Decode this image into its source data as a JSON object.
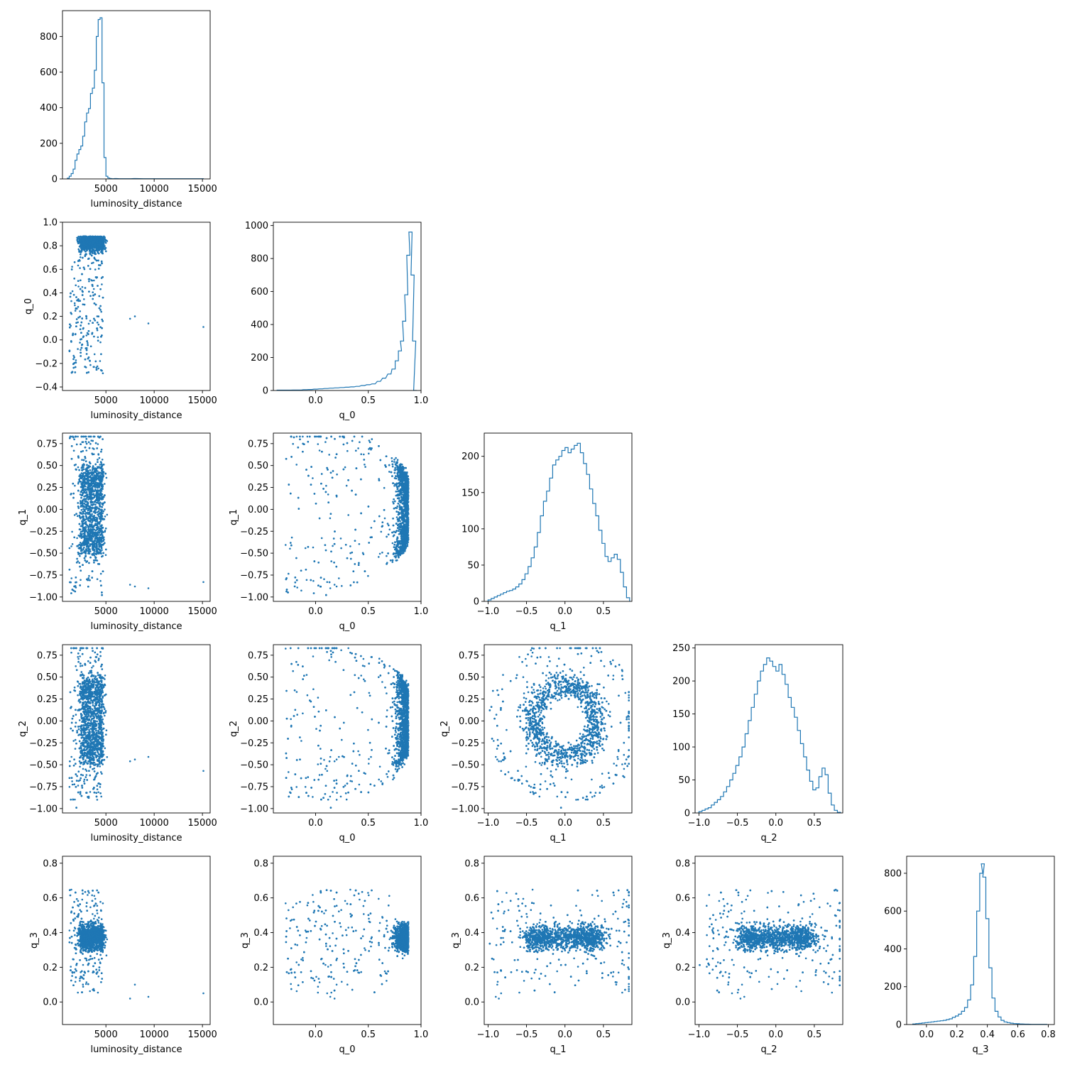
{
  "figure": {
    "type": "corner-plot",
    "color": "#1f77b4"
  },
  "chart_data": [
    {
      "type": "histogram",
      "row": 0,
      "col": 0,
      "xlabel": "luminosity_distance",
      "xlim": [
        500,
        15800
      ],
      "ylim": [
        0,
        945
      ],
      "xticks": [
        5000,
        10000,
        15000
      ],
      "yticks": [
        0,
        200,
        400,
        600,
        800
      ],
      "bins": [
        [
          1100,
          4
        ],
        [
          1300,
          15
        ],
        [
          1500,
          30
        ],
        [
          1700,
          55
        ],
        [
          1900,
          105
        ],
        [
          2100,
          140
        ],
        [
          2300,
          165
        ],
        [
          2500,
          185
        ],
        [
          2700,
          240
        ],
        [
          2900,
          320
        ],
        [
          3100,
          370
        ],
        [
          3300,
          395
        ],
        [
          3500,
          480
        ],
        [
          3700,
          510
        ],
        [
          3900,
          610
        ],
        [
          4100,
          800
        ],
        [
          4300,
          895
        ],
        [
          4500,
          905
        ],
        [
          4700,
          540
        ],
        [
          4900,
          120
        ],
        [
          5100,
          15
        ],
        [
          5300,
          5
        ],
        [
          5500,
          2
        ],
        [
          5700,
          1
        ],
        [
          6000,
          2
        ],
        [
          6500,
          1
        ],
        [
          7500,
          1
        ],
        [
          8000,
          2
        ],
        [
          9000,
          1
        ],
        [
          9500,
          1
        ],
        [
          15000,
          1
        ]
      ],
      "bin_width": 200
    },
    {
      "type": "scatter",
      "row": 1,
      "col": 0,
      "xlabel": "luminosity_distance",
      "ylabel": "q_0",
      "xlim": [
        500,
        15800
      ],
      "ylim": [
        -0.43,
        1.0
      ],
      "xticks": [
        5000,
        10000,
        15000
      ],
      "yticks": [
        -0.4,
        -0.2,
        0.0,
        0.2,
        0.4,
        0.6,
        0.8,
        1.0
      ]
    },
    {
      "type": "histogram",
      "row": 1,
      "col": 1,
      "xlabel": "q_0",
      "xlim": [
        -0.4,
        1.0
      ],
      "ylim": [
        0,
        1020
      ],
      "xticks": [
        0.0,
        0.5,
        1.0
      ],
      "yticks": [
        0,
        200,
        400,
        600,
        800,
        1000
      ],
      "bins": [
        [
          -0.35,
          2
        ],
        [
          -0.3,
          2
        ],
        [
          -0.25,
          2
        ],
        [
          -0.2,
          3
        ],
        [
          -0.15,
          3
        ],
        [
          -0.1,
          5
        ],
        [
          -0.05,
          6
        ],
        [
          0.0,
          8
        ],
        [
          0.05,
          10
        ],
        [
          0.1,
          12
        ],
        [
          0.15,
          14
        ],
        [
          0.2,
          16
        ],
        [
          0.25,
          18
        ],
        [
          0.3,
          20
        ],
        [
          0.35,
          22
        ],
        [
          0.4,
          25
        ],
        [
          0.45,
          30
        ],
        [
          0.5,
          35
        ],
        [
          0.55,
          40
        ],
        [
          0.6,
          55
        ],
        [
          0.65,
          75
        ],
        [
          0.7,
          100
        ],
        [
          0.74,
          130
        ],
        [
          0.77,
          180
        ],
        [
          0.8,
          240
        ],
        [
          0.82,
          300
        ],
        [
          0.84,
          420
        ],
        [
          0.86,
          580
        ],
        [
          0.88,
          820
        ],
        [
          0.9,
          960
        ],
        [
          0.92,
          700
        ],
        [
          0.935,
          300
        ],
        [
          0.945,
          0
        ]
      ],
      "bin_width": 0.03
    },
    {
      "type": "scatter",
      "row": 2,
      "col": 0,
      "xlabel": "luminosity_distance",
      "ylabel": "q_1",
      "xlim": [
        500,
        15800
      ],
      "ylim": [
        -1.05,
        0.87
      ],
      "xticks": [
        5000,
        10000,
        15000
      ],
      "yticks": [
        -1.0,
        -0.75,
        -0.5,
        -0.25,
        0.0,
        0.25,
        0.5,
        0.75
      ]
    },
    {
      "type": "scatter",
      "row": 2,
      "col": 1,
      "xlabel": "q_0",
      "ylabel": "q_1",
      "xlim": [
        -0.4,
        1.0
      ],
      "ylim": [
        -1.05,
        0.87
      ],
      "xticks": [
        0.0,
        0.5,
        1.0
      ],
      "yticks": [
        -1.0,
        -0.75,
        -0.5,
        -0.25,
        0.0,
        0.25,
        0.5,
        0.75
      ]
    },
    {
      "type": "histogram",
      "row": 2,
      "col": 2,
      "xlabel": "q_1",
      "xlim": [
        -1.05,
        0.87
      ],
      "ylim": [
        0,
        232
      ],
      "xticks": [
        -1.0,
        -0.5,
        0.0,
        0.5
      ],
      "yticks": [
        0,
        50,
        100,
        150,
        200
      ],
      "bins": [
        [
          -0.98,
          2
        ],
        [
          -0.94,
          4
        ],
        [
          -0.9,
          6
        ],
        [
          -0.86,
          8
        ],
        [
          -0.82,
          10
        ],
        [
          -0.78,
          12
        ],
        [
          -0.74,
          14
        ],
        [
          -0.7,
          15
        ],
        [
          -0.66,
          17
        ],
        [
          -0.62,
          20
        ],
        [
          -0.58,
          24
        ],
        [
          -0.54,
          30
        ],
        [
          -0.5,
          38
        ],
        [
          -0.46,
          48
        ],
        [
          -0.42,
          60
        ],
        [
          -0.38,
          75
        ],
        [
          -0.34,
          95
        ],
        [
          -0.3,
          118
        ],
        [
          -0.26,
          138
        ],
        [
          -0.22,
          152
        ],
        [
          -0.18,
          170
        ],
        [
          -0.14,
          188
        ],
        [
          -0.1,
          195
        ],
        [
          -0.06,
          200
        ],
        [
          -0.02,
          208
        ],
        [
          0.02,
          212
        ],
        [
          0.06,
          205
        ],
        [
          0.1,
          210
        ],
        [
          0.14,
          215
        ],
        [
          0.18,
          218
        ],
        [
          0.22,
          205
        ],
        [
          0.26,
          190
        ],
        [
          0.3,
          175
        ],
        [
          0.34,
          155
        ],
        [
          0.38,
          135
        ],
        [
          0.42,
          118
        ],
        [
          0.46,
          98
        ],
        [
          0.5,
          80
        ],
        [
          0.54,
          62
        ],
        [
          0.58,
          55
        ],
        [
          0.62,
          60
        ],
        [
          0.66,
          65
        ],
        [
          0.7,
          58
        ],
        [
          0.74,
          40
        ],
        [
          0.78,
          20
        ],
        [
          0.82,
          5
        ]
      ],
      "bin_width": 0.04
    },
    {
      "type": "scatter",
      "row": 3,
      "col": 0,
      "xlabel": "luminosity_distance",
      "ylabel": "q_2",
      "xlim": [
        500,
        15800
      ],
      "ylim": [
        -1.05,
        0.87
      ],
      "xticks": [
        5000,
        10000,
        15000
      ],
      "yticks": [
        -1.0,
        -0.75,
        -0.5,
        -0.25,
        0.0,
        0.25,
        0.5,
        0.75
      ]
    },
    {
      "type": "scatter",
      "row": 3,
      "col": 1,
      "xlabel": "q_0",
      "ylabel": "q_2",
      "xlim": [
        -0.4,
        1.0
      ],
      "ylim": [
        -1.05,
        0.87
      ],
      "xticks": [
        0.0,
        0.5,
        1.0
      ],
      "yticks": [
        -1.0,
        -0.75,
        -0.5,
        -0.25,
        0.0,
        0.25,
        0.5,
        0.75
      ]
    },
    {
      "type": "scatter",
      "row": 3,
      "col": 2,
      "xlabel": "q_1",
      "ylabel": "q_2",
      "xlim": [
        -1.05,
        0.87
      ],
      "ylim": [
        -1.05,
        0.87
      ],
      "xticks": [
        -1.0,
        -0.5,
        0.0,
        0.5
      ],
      "yticks": [
        -1.0,
        -0.75,
        -0.5,
        -0.25,
        0.0,
        0.25,
        0.5,
        0.75
      ]
    },
    {
      "type": "histogram",
      "row": 3,
      "col": 3,
      "xlabel": "q_2",
      "xlim": [
        -1.05,
        0.87
      ],
      "ylim": [
        0,
        255
      ],
      "xticks": [
        -1.0,
        -0.5,
        0.0,
        0.5
      ],
      "yticks": [
        0,
        50,
        100,
        150,
        200,
        250
      ],
      "bins": [
        [
          -0.98,
          2
        ],
        [
          -0.94,
          4
        ],
        [
          -0.9,
          6
        ],
        [
          -0.86,
          8
        ],
        [
          -0.82,
          12
        ],
        [
          -0.78,
          16
        ],
        [
          -0.74,
          20
        ],
        [
          -0.7,
          25
        ],
        [
          -0.66,
          32
        ],
        [
          -0.62,
          40
        ],
        [
          -0.58,
          50
        ],
        [
          -0.54,
          60
        ],
        [
          -0.5,
          72
        ],
        [
          -0.46,
          85
        ],
        [
          -0.42,
          100
        ],
        [
          -0.38,
          120
        ],
        [
          -0.34,
          140
        ],
        [
          -0.3,
          160
        ],
        [
          -0.26,
          180
        ],
        [
          -0.22,
          200
        ],
        [
          -0.18,
          215
        ],
        [
          -0.14,
          225
        ],
        [
          -0.1,
          235
        ],
        [
          -0.06,
          230
        ],
        [
          -0.02,
          222
        ],
        [
          0.02,
          215
        ],
        [
          0.06,
          225
        ],
        [
          0.1,
          210
        ],
        [
          0.14,
          195
        ],
        [
          0.18,
          175
        ],
        [
          0.22,
          160
        ],
        [
          0.26,
          145
        ],
        [
          0.3,
          125
        ],
        [
          0.34,
          105
        ],
        [
          0.38,
          85
        ],
        [
          0.42,
          65
        ],
        [
          0.46,
          48
        ],
        [
          0.5,
          35
        ],
        [
          0.54,
          38
        ],
        [
          0.58,
          55
        ],
        [
          0.62,
          68
        ],
        [
          0.66,
          58
        ],
        [
          0.7,
          30
        ],
        [
          0.74,
          12
        ],
        [
          0.78,
          4
        ],
        [
          0.82,
          1
        ]
      ],
      "bin_width": 0.04
    },
    {
      "type": "scatter",
      "row": 4,
      "col": 0,
      "xlabel": "luminosity_distance",
      "ylabel": "q_3",
      "xlim": [
        500,
        15800
      ],
      "ylim": [
        -0.13,
        0.84
      ],
      "xticks": [
        5000,
        10000,
        15000
      ],
      "yticks": [
        0.0,
        0.2,
        0.4,
        0.6,
        0.8
      ]
    },
    {
      "type": "scatter",
      "row": 4,
      "col": 1,
      "xlabel": "q_0",
      "ylabel": "q_3",
      "xlim": [
        -0.4,
        1.0
      ],
      "ylim": [
        -0.13,
        0.84
      ],
      "xticks": [
        0.0,
        0.5,
        1.0
      ],
      "yticks": [
        0.0,
        0.2,
        0.4,
        0.6,
        0.8
      ]
    },
    {
      "type": "scatter",
      "row": 4,
      "col": 2,
      "xlabel": "q_1",
      "ylabel": "q_3",
      "xlim": [
        -1.05,
        0.87
      ],
      "ylim": [
        -0.13,
        0.84
      ],
      "xticks": [
        -1.0,
        -0.5,
        0.0,
        0.5
      ],
      "yticks": [
        0.0,
        0.2,
        0.4,
        0.6,
        0.8
      ]
    },
    {
      "type": "scatter",
      "row": 4,
      "col": 3,
      "xlabel": "q_2",
      "ylabel": "q_3",
      "xlim": [
        -1.05,
        0.87
      ],
      "ylim": [
        -0.13,
        0.84
      ],
      "xticks": [
        -1.0,
        -0.5,
        0.0,
        0.5
      ],
      "yticks": [
        0.0,
        0.2,
        0.4,
        0.6,
        0.8
      ]
    },
    {
      "type": "histogram",
      "row": 4,
      "col": 4,
      "xlabel": "q_3",
      "xlim": [
        -0.13,
        0.84
      ],
      "ylim": [
        0,
        890
      ],
      "xticks": [
        0.0,
        0.2,
        0.4,
        0.6,
        0.8
      ],
      "yticks": [
        0,
        200,
        400,
        600,
        800
      ],
      "bins": [
        [
          -0.08,
          3
        ],
        [
          -0.06,
          5
        ],
        [
          -0.04,
          6
        ],
        [
          -0.02,
          8
        ],
        [
          0.0,
          10
        ],
        [
          0.02,
          12
        ],
        [
          0.04,
          14
        ],
        [
          0.06,
          16
        ],
        [
          0.08,
          18
        ],
        [
          0.1,
          20
        ],
        [
          0.12,
          22
        ],
        [
          0.14,
          26
        ],
        [
          0.16,
          30
        ],
        [
          0.18,
          38
        ],
        [
          0.2,
          45
        ],
        [
          0.22,
          55
        ],
        [
          0.24,
          70
        ],
        [
          0.26,
          90
        ],
        [
          0.28,
          130
        ],
        [
          0.3,
          210
        ],
        [
          0.32,
          360
        ],
        [
          0.34,
          600
        ],
        [
          0.36,
          800
        ],
        [
          0.37,
          850
        ],
        [
          0.38,
          780
        ],
        [
          0.4,
          560
        ],
        [
          0.42,
          300
        ],
        [
          0.44,
          140
        ],
        [
          0.46,
          70
        ],
        [
          0.48,
          40
        ],
        [
          0.5,
          22
        ],
        [
          0.52,
          14
        ],
        [
          0.54,
          10
        ],
        [
          0.56,
          7
        ],
        [
          0.58,
          5
        ],
        [
          0.6,
          4
        ],
        [
          0.62,
          3
        ],
        [
          0.66,
          2
        ],
        [
          0.7,
          1
        ],
        [
          0.78,
          1
        ]
      ],
      "bin_width": 0.02
    }
  ]
}
